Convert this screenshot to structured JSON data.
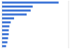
{
  "chart_data": {
    "type": "bar",
    "orientation": "horizontal",
    "categories": [
      null,
      null,
      null,
      null,
      null,
      null,
      null,
      null,
      null,
      null,
      null,
      null
    ],
    "values": [
      85,
      46,
      43,
      37,
      18,
      13,
      11,
      10,
      10,
      9,
      8,
      6
    ],
    "color": "#3b73d6",
    "xlim": [
      0,
      100
    ],
    "xticks": [
      0,
      25,
      50,
      75,
      100
    ],
    "grid": true,
    "tick_labels": false
  }
}
